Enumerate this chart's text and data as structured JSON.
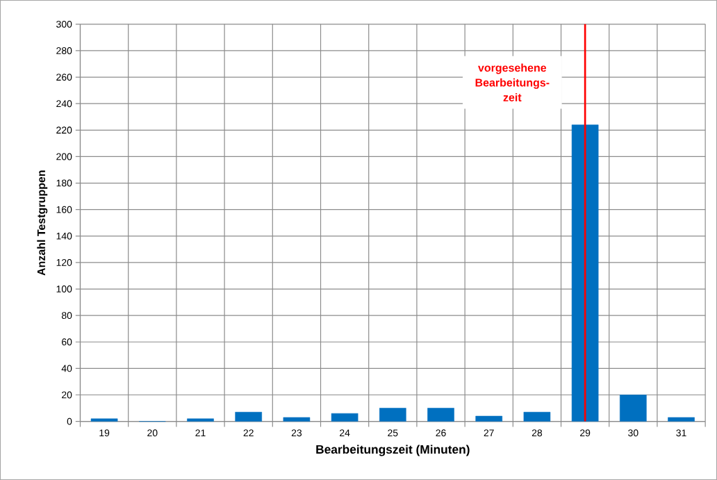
{
  "chart_data": {
    "type": "bar",
    "xlabel": "Bearbeitungszeit (Minuten)",
    "ylabel": "Anzahl Testgruppen",
    "categories": [
      "19",
      "20",
      "21",
      "22",
      "23",
      "24",
      "25",
      "26",
      "27",
      "28",
      "29",
      "30",
      "31"
    ],
    "values": [
      2,
      0,
      2,
      7,
      3,
      6,
      10,
      10,
      4,
      7,
      224,
      20,
      3
    ],
    "color": "#0070c0",
    "ylim": [
      0,
      300
    ],
    "yticks": [
      0,
      20,
      40,
      60,
      80,
      100,
      120,
      140,
      160,
      180,
      200,
      220,
      240,
      260,
      280,
      300
    ],
    "grid": true,
    "ref_lines": [
      {
        "axis": "x",
        "value": "29",
        "label": "vorgesehene Bearbeitungs-zeit",
        "color": "#ff0000"
      }
    ]
  }
}
